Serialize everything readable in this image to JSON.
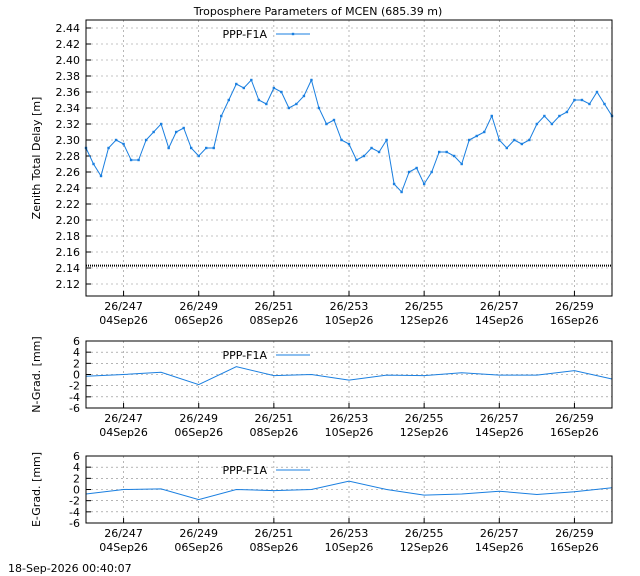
{
  "title": "Troposphere Parameters of MCEN (685.39 m)",
  "footer_timestamp": "18-Sep-2026 00:40:07",
  "colors": {
    "series": "#1a7fe0",
    "baseline": "#000000",
    "grid": "#888888"
  },
  "x_ticks": [
    {
      "doy": "26/247",
      "date": "04Sep26",
      "day": 247
    },
    {
      "doy": "26/249",
      "date": "06Sep26",
      "day": 249
    },
    {
      "doy": "26/251",
      "date": "08Sep26",
      "day": 251
    },
    {
      "doy": "26/253",
      "date": "10Sep26",
      "day": 253
    },
    {
      "doy": "26/255",
      "date": "12Sep26",
      "day": 255
    },
    {
      "doy": "26/257",
      "date": "14Sep26",
      "day": 257
    },
    {
      "doy": "26/259",
      "date": "16Sep26",
      "day": 259
    }
  ],
  "chart_data": [
    {
      "type": "line",
      "ylabel": "Zenith Total Delay [m]",
      "xlim": [
        246.0,
        260.0
      ],
      "ylim": [
        2.105,
        2.45
      ],
      "yticks": [
        "2.12",
        "2.14",
        "2.16",
        "2.18",
        "2.20",
        "2.22",
        "2.24",
        "2.26",
        "2.28",
        "2.30",
        "2.32",
        "2.34",
        "2.36",
        "2.38",
        "2.40",
        "2.42",
        "2.44"
      ],
      "grid": true,
      "legend": "top-center",
      "baseline": {
        "y": 2.143
      },
      "series": [
        {
          "name": "PPP-F1A",
          "x": [
            246.0,
            246.2,
            246.4,
            246.6,
            246.8,
            247.0,
            247.2,
            247.4,
            247.6,
            247.8,
            248.0,
            248.2,
            248.4,
            248.6,
            248.8,
            249.0,
            249.2,
            249.4,
            249.6,
            249.8,
            250.0,
            250.2,
            250.4,
            250.6,
            250.8,
            251.0,
            251.2,
            251.4,
            251.6,
            251.8,
            252.0,
            252.2,
            252.4,
            252.6,
            252.8,
            253.0,
            253.2,
            253.4,
            253.6,
            253.8,
            254.0,
            254.2,
            254.4,
            254.6,
            254.8,
            255.0,
            255.2,
            255.4,
            255.6,
            255.8,
            256.0,
            256.2,
            256.4,
            256.6,
            256.8,
            257.0,
            257.2,
            257.4,
            257.6,
            257.8,
            258.0,
            258.2,
            258.4,
            258.6,
            258.8,
            259.0,
            259.2,
            259.4,
            259.6,
            259.8,
            260.0
          ],
          "y": [
            2.29,
            2.27,
            2.255,
            2.29,
            2.3,
            2.295,
            2.275,
            2.275,
            2.3,
            2.31,
            2.32,
            2.29,
            2.31,
            2.315,
            2.29,
            2.28,
            2.29,
            2.29,
            2.33,
            2.35,
            2.37,
            2.365,
            2.375,
            2.35,
            2.345,
            2.365,
            2.36,
            2.34,
            2.345,
            2.355,
            2.375,
            2.34,
            2.32,
            2.325,
            2.3,
            2.295,
            2.275,
            2.28,
            2.29,
            2.285,
            2.3,
            2.245,
            2.235,
            2.26,
            2.265,
            2.245,
            2.26,
            2.285,
            2.285,
            2.28,
            2.27,
            2.3,
            2.305,
            2.31,
            2.33,
            2.3,
            2.29,
            2.3,
            2.295,
            2.3,
            2.32,
            2.33,
            2.32,
            2.33,
            2.335,
            2.35,
            2.35,
            2.345,
            2.36,
            2.345,
            2.33
          ]
        }
      ]
    },
    {
      "type": "line",
      "ylabel": "N-Grad. [mm]",
      "xlim": [
        246.0,
        260.0
      ],
      "ylim": [
        -6,
        6
      ],
      "yticks": [
        "-6",
        "-4",
        "-2",
        "0",
        "2",
        "4",
        "6"
      ],
      "grid": true,
      "legend": "top-center",
      "series": [
        {
          "name": "PPP-F1A",
          "x": [
            246.0,
            247.0,
            248.0,
            249.0,
            250.0,
            251.0,
            252.0,
            253.0,
            254.0,
            255.0,
            256.0,
            257.0,
            258.0,
            259.0,
            260.0
          ],
          "y": [
            -0.3,
            0.0,
            0.4,
            -1.8,
            1.4,
            -0.2,
            0.0,
            -1.0,
            -0.1,
            -0.2,
            0.3,
            -0.1,
            -0.1,
            0.7,
            -0.8
          ]
        }
      ]
    },
    {
      "type": "line",
      "ylabel": "E-Grad. [mm]",
      "xlim": [
        246.0,
        260.0
      ],
      "ylim": [
        -6,
        6
      ],
      "yticks": [
        "-6",
        "-4",
        "-2",
        "0",
        "2",
        "4",
        "6"
      ],
      "grid": true,
      "legend": "top-center",
      "series": [
        {
          "name": "PPP-F1A",
          "x": [
            246.0,
            247.0,
            248.0,
            249.0,
            250.0,
            251.0,
            252.0,
            253.0,
            254.0,
            255.0,
            256.0,
            257.0,
            258.0,
            259.0,
            260.0
          ],
          "y": [
            -0.8,
            0.0,
            0.1,
            -1.8,
            0.0,
            -0.2,
            0.0,
            1.5,
            0.0,
            -1.0,
            -0.8,
            -0.3,
            -0.9,
            -0.4,
            0.3
          ]
        }
      ]
    }
  ]
}
